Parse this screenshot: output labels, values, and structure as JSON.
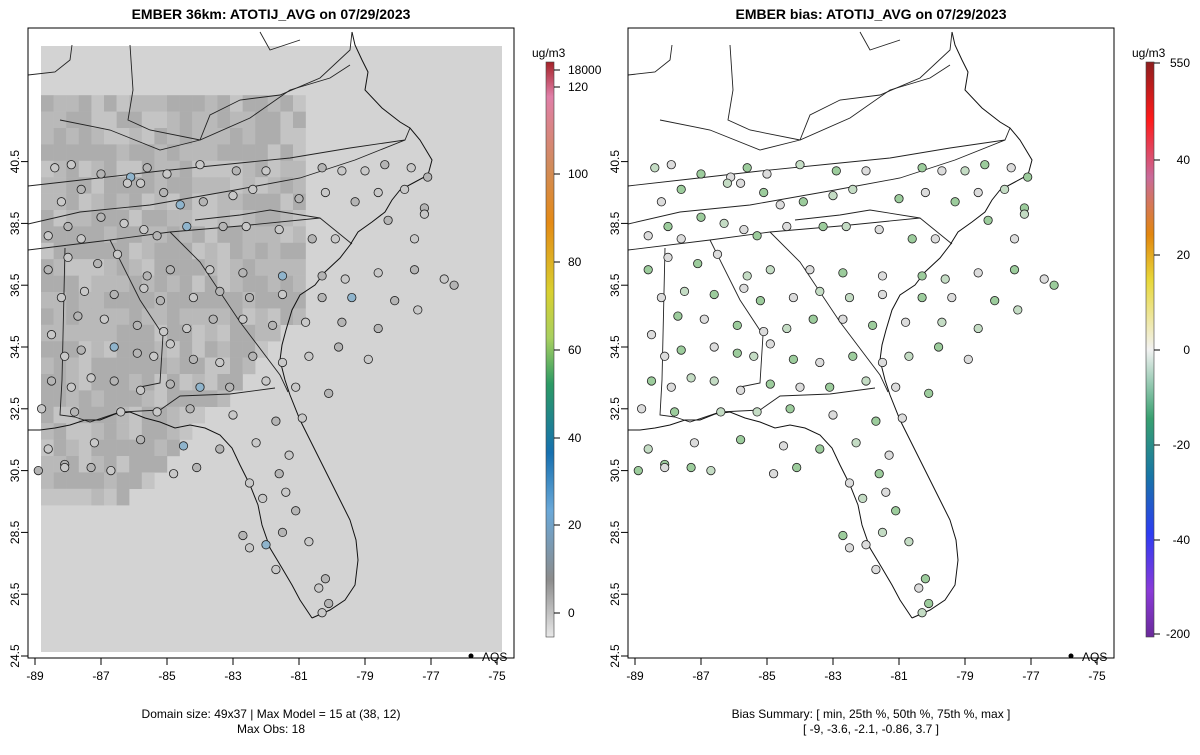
{
  "left_panel": {
    "title": "EMBER 36km: ATOTIJ_AVG on 07/29/2023",
    "unit": "ug/m3",
    "legend_label": "AQS",
    "footer_line1": "Domain size: 49x37 | Max Model = 15 at (38, 12)",
    "footer_line2": "Max Obs: 18",
    "colorbar_ticks": [
      "18000",
      "120",
      "100",
      "80",
      "60",
      "40",
      "20",
      "0"
    ]
  },
  "right_panel": {
    "title": "EMBER bias: ATOTIJ_AVG on 07/29/2023",
    "unit": "ug/m3",
    "legend_label": "AQS",
    "footer_line1": "Bias Summary: [ min, 25th %, 50th %, 75th %, max ]",
    "footer_line2": "[ -9,  -3.6,  -2.1,  -0.86,  3.7 ]",
    "colorbar_ticks": [
      "550",
      "40",
      "20",
      "0",
      "-20",
      "-40",
      "-200"
    ]
  },
  "axes": {
    "x_ticks": [
      "-89",
      "-87",
      "-85",
      "-83",
      "-81",
      "-79",
      "-77",
      "-75"
    ],
    "y_ticks": [
      "24.5",
      "26.5",
      "28.5",
      "30.5",
      "32.5",
      "34.5",
      "36.5",
      "38.5",
      "40.5"
    ]
  },
  "colors": {
    "domain_fill": "#d3d3d3",
    "cell_fill": "#b9b9b9",
    "site_fill": "#c8c8c8",
    "bias_site_fill": "#c4dcc4"
  },
  "stations": [
    [
      -88.4,
      40.3
    ],
    [
      -87.9,
      40.4
    ],
    [
      -87.0,
      40.1
    ],
    [
      -86.1,
      40.0
    ],
    [
      -85.6,
      40.3
    ],
    [
      -85.0,
      40.1
    ],
    [
      -84.0,
      40.4
    ],
    [
      -82.9,
      40.2
    ],
    [
      -82.0,
      40.2
    ],
    [
      -80.3,
      40.3
    ],
    [
      -79.7,
      40.2
    ],
    [
      -79.0,
      40.2
    ],
    [
      -78.4,
      40.4
    ],
    [
      -77.6,
      40.3
    ],
    [
      -77.1,
      40.0
    ],
    [
      -88.2,
      39.2
    ],
    [
      -87.6,
      39.6
    ],
    [
      -86.2,
      39.8
    ],
    [
      -85.8,
      39.8
    ],
    [
      -85.1,
      39.5
    ],
    [
      -84.6,
      39.1
    ],
    [
      -83.9,
      39.2
    ],
    [
      -83.0,
      39.4
    ],
    [
      -82.4,
      39.6
    ],
    [
      -81.0,
      39.3
    ],
    [
      -80.2,
      39.5
    ],
    [
      -79.3,
      39.2
    ],
    [
      -78.6,
      39.5
    ],
    [
      -77.8,
      39.6
    ],
    [
      -77.2,
      39.0
    ],
    [
      -88.6,
      38.1
    ],
    [
      -88.0,
      38.4
    ],
    [
      -87.6,
      38.0
    ],
    [
      -87.0,
      38.7
    ],
    [
      -86.3,
      38.5
    ],
    [
      -85.7,
      38.3
    ],
    [
      -85.3,
      38.1
    ],
    [
      -84.4,
      38.4
    ],
    [
      -83.3,
      38.4
    ],
    [
      -82.6,
      38.4
    ],
    [
      -81.6,
      38.3
    ],
    [
      -80.6,
      38.0
    ],
    [
      -79.9,
      38.0
    ],
    [
      -78.3,
      38.6
    ],
    [
      -77.5,
      38.0
    ],
    [
      -77.2,
      38.8
    ],
    [
      -88.6,
      37.0
    ],
    [
      -88.0,
      37.4
    ],
    [
      -87.1,
      37.2
    ],
    [
      -86.5,
      37.5
    ],
    [
      -85.6,
      36.8
    ],
    [
      -84.9,
      37.0
    ],
    [
      -83.7,
      37.0
    ],
    [
      -82.7,
      36.9
    ],
    [
      -81.5,
      36.8
    ],
    [
      -80.3,
      36.8
    ],
    [
      -79.6,
      36.7
    ],
    [
      -78.6,
      36.9
    ],
    [
      -77.5,
      37.0
    ],
    [
      -76.6,
      36.7
    ],
    [
      -76.3,
      36.5
    ],
    [
      -88.2,
      36.1
    ],
    [
      -87.5,
      36.3
    ],
    [
      -86.6,
      36.2
    ],
    [
      -85.7,
      36.4
    ],
    [
      -85.2,
      36.0
    ],
    [
      -84.2,
      36.1
    ],
    [
      -83.4,
      36.3
    ],
    [
      -82.5,
      36.1
    ],
    [
      -81.5,
      36.2
    ],
    [
      -80.3,
      36.1
    ],
    [
      -79.4,
      36.1
    ],
    [
      -78.1,
      36.0
    ],
    [
      -77.4,
      35.7
    ],
    [
      -88.5,
      34.9
    ],
    [
      -87.7,
      35.5
    ],
    [
      -86.9,
      35.4
    ],
    [
      -85.9,
      35.2
    ],
    [
      -85.1,
      35.0
    ],
    [
      -84.4,
      35.1
    ],
    [
      -83.6,
      35.4
    ],
    [
      -82.7,
      35.4
    ],
    [
      -81.8,
      35.2
    ],
    [
      -80.8,
      35.3
    ],
    [
      -79.7,
      35.3
    ],
    [
      -78.6,
      35.1
    ],
    [
      -88.1,
      34.2
    ],
    [
      -87.6,
      34.4
    ],
    [
      -86.6,
      34.5
    ],
    [
      -85.9,
      34.3
    ],
    [
      -85.4,
      34.2
    ],
    [
      -84.9,
      34.6
    ],
    [
      -84.2,
      34.1
    ],
    [
      -83.4,
      34.0
    ],
    [
      -82.4,
      34.2
    ],
    [
      -81.5,
      34.0
    ],
    [
      -80.7,
      34.2
    ],
    [
      -79.8,
      34.5
    ],
    [
      -78.9,
      34.1
    ],
    [
      -88.5,
      33.4
    ],
    [
      -87.9,
      33.2
    ],
    [
      -87.3,
      33.5
    ],
    [
      -86.6,
      33.4
    ],
    [
      -85.8,
      33.1
    ],
    [
      -84.9,
      33.3
    ],
    [
      -84.0,
      33.2
    ],
    [
      -83.1,
      33.2
    ],
    [
      -82.0,
      33.4
    ],
    [
      -81.1,
      33.2
    ],
    [
      -80.1,
      33.0
    ],
    [
      -88.8,
      32.5
    ],
    [
      -87.8,
      32.4
    ],
    [
      -86.4,
      32.4
    ],
    [
      -85.3,
      32.4
    ],
    [
      -84.3,
      32.5
    ],
    [
      -83.0,
      32.3
    ],
    [
      -81.7,
      32.1
    ],
    [
      -80.9,
      32.2
    ],
    [
      -88.6,
      31.2
    ],
    [
      -88.1,
      30.7
    ],
    [
      -87.2,
      31.4
    ],
    [
      -85.8,
      31.5
    ],
    [
      -84.5,
      31.3
    ],
    [
      -83.4,
      31.2
    ],
    [
      -82.3,
      31.4
    ],
    [
      -81.3,
      31.0
    ],
    [
      -88.9,
      30.5
    ],
    [
      -88.1,
      30.6
    ],
    [
      -87.3,
      30.6
    ],
    [
      -86.7,
      30.5
    ],
    [
      -84.8,
      30.4
    ],
    [
      -84.1,
      30.6
    ],
    [
      -82.5,
      30.1
    ],
    [
      -81.6,
      30.4
    ],
    [
      -81.4,
      29.8
    ],
    [
      -82.1,
      29.6
    ],
    [
      -81.1,
      29.2
    ],
    [
      -82.5,
      28.0
    ],
    [
      -82.7,
      28.4
    ],
    [
      -82.0,
      28.1
    ],
    [
      -81.5,
      28.5
    ],
    [
      -80.7,
      28.2
    ],
    [
      -81.7,
      27.3
    ],
    [
      -80.2,
      27.0
    ],
    [
      -80.4,
      26.7
    ],
    [
      -80.1,
      26.2
    ],
    [
      -80.3,
      25.9
    ]
  ]
}
